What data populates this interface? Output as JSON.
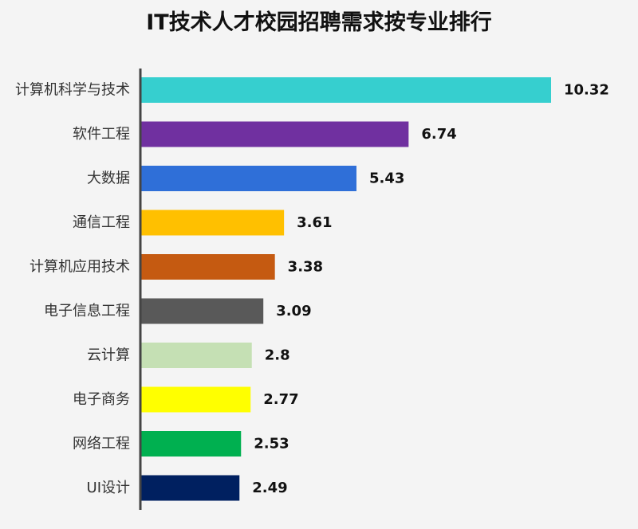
{
  "chart_data": {
    "type": "bar",
    "orientation": "horizontal",
    "title": "IT技术人才校园招聘需求按专业排行",
    "categories": [
      "计算机科学与技术",
      "软件工程",
      "大数据",
      "通信工程",
      "计算机应用技术",
      "电子信息工程",
      "云计算",
      "电子商务",
      "网络工程",
      "UI设计"
    ],
    "values": [
      10.32,
      6.74,
      5.43,
      3.61,
      3.38,
      3.09,
      2.8,
      2.77,
      2.53,
      2.49
    ],
    "value_labels": [
      "10.32",
      "6.74",
      "5.43",
      "3.61",
      "3.38",
      "3.09",
      "2.8",
      "2.77",
      "2.53",
      "2.49"
    ],
    "colors": [
      "#36cfcf",
      "#7030a0",
      "#2f6fd8",
      "#ffc000",
      "#c55a11",
      "#595959",
      "#c5e0b4",
      "#ffff00",
      "#00b050",
      "#002060"
    ],
    "xlim": [
      0,
      10.32
    ],
    "grid": false,
    "xlabel": "",
    "ylabel": ""
  }
}
